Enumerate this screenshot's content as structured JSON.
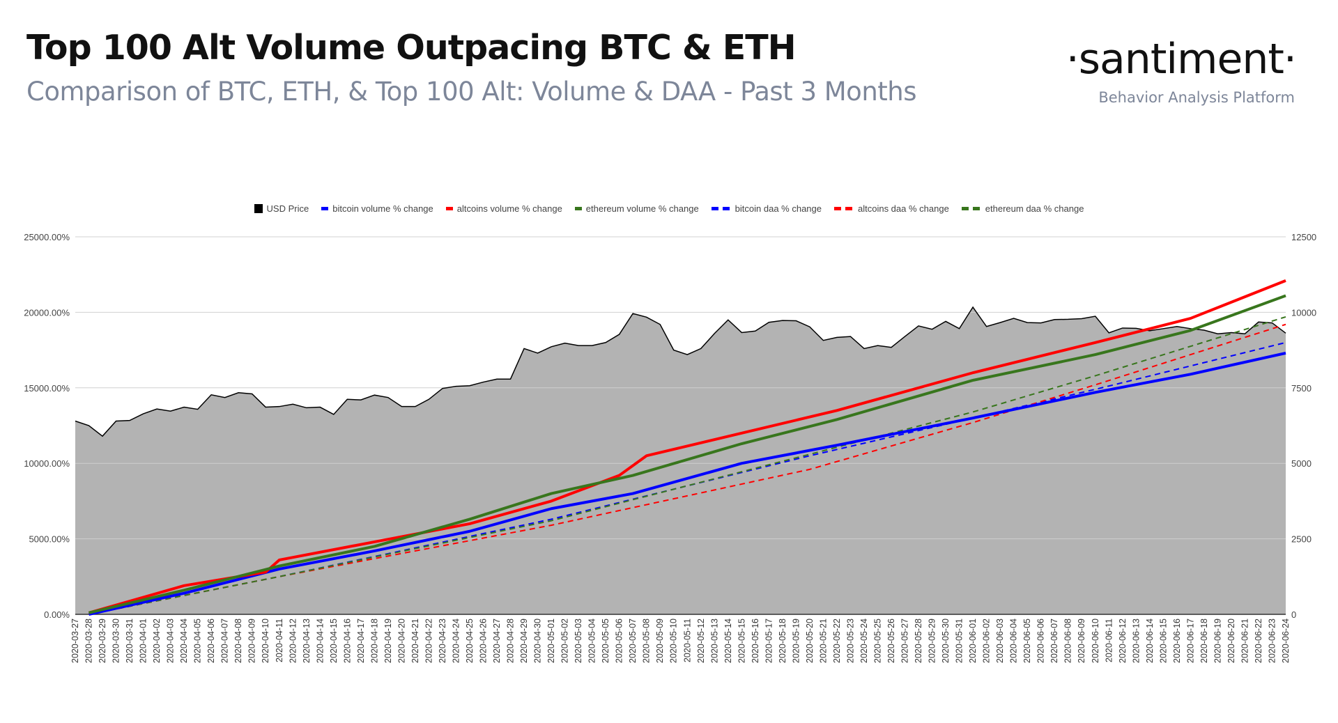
{
  "header": {
    "title": "Top 100 Alt Volume Outpacing BTC & ETH",
    "subtitle": "Comparison of BTC, ETH, & Top 100 Alt: Volume & DAA - Past 3 Months",
    "logo": "·santiment·",
    "tagline": "Behavior Analysis Platform"
  },
  "chart_data": {
    "type": "line",
    "legend_position": "top",
    "grid": true,
    "y_left": {
      "range": [
        0,
        25000
      ],
      "ticks": [
        "0.00%",
        "5000.00%",
        "10000.00%",
        "15000.00%",
        "20000.00%",
        "25000.00%"
      ],
      "tick_values": [
        0,
        5000,
        10000,
        15000,
        20000,
        25000
      ]
    },
    "y_right": {
      "range": [
        0,
        12500
      ],
      "ticks": [
        "0",
        "2500",
        "5000",
        "7500",
        "10000",
        "12500"
      ],
      "tick_values": [
        0,
        2500,
        5000,
        7500,
        10000,
        12500
      ]
    },
    "categories": [
      "2020-03-27",
      "2020-03-28",
      "2020-03-29",
      "2020-03-30",
      "2020-03-31",
      "2020-04-01",
      "2020-04-02",
      "2020-04-03",
      "2020-04-04",
      "2020-04-05",
      "2020-04-06",
      "2020-04-07",
      "2020-04-08",
      "2020-04-09",
      "2020-04-10",
      "2020-04-11",
      "2020-04-12",
      "2020-04-13",
      "2020-04-14",
      "2020-04-15",
      "2020-04-16",
      "2020-04-17",
      "2020-04-18",
      "2020-04-19",
      "2020-04-20",
      "2020-04-21",
      "2020-04-22",
      "2020-04-23",
      "2020-04-24",
      "2020-04-25",
      "2020-04-26",
      "2020-04-27",
      "2020-04-28",
      "2020-04-29",
      "2020-04-30",
      "2020-05-01",
      "2020-05-02",
      "2020-05-03",
      "2020-05-04",
      "2020-05-05",
      "2020-05-06",
      "2020-05-07",
      "2020-05-08",
      "2020-05-09",
      "2020-05-10",
      "2020-05-11",
      "2020-05-12",
      "2020-05-13",
      "2020-05-14",
      "2020-05-15",
      "2020-05-16",
      "2020-05-17",
      "2020-05-18",
      "2020-05-19",
      "2020-05-20",
      "2020-05-21",
      "2020-05-22",
      "2020-05-23",
      "2020-05-24",
      "2020-05-25",
      "2020-05-26",
      "2020-05-27",
      "2020-05-28",
      "2020-05-29",
      "2020-05-30",
      "2020-05-31",
      "2020-06-01",
      "2020-06-02",
      "2020-06-03",
      "2020-06-04",
      "2020-06-05",
      "2020-06-06",
      "2020-06-07",
      "2020-06-08",
      "2020-06-09",
      "2020-06-10",
      "2020-06-11",
      "2020-06-12",
      "2020-06-13",
      "2020-06-14",
      "2020-06-15",
      "2020-06-16",
      "2020-06-17",
      "2020-06-18",
      "2020-06-19",
      "2020-06-20",
      "2020-06-21",
      "2020-06-22",
      "2020-06-23",
      "2020-06-24"
    ],
    "price": {
      "name": "USD Price",
      "axis": "right",
      "color": "#000000",
      "fill": "#b3b3b3",
      "values": [
        6400,
        6250,
        5900,
        6400,
        6420,
        6640,
        6800,
        6730,
        6860,
        6790,
        7270,
        7180,
        7340,
        7300,
        6860,
        6880,
        6960,
        6840,
        6860,
        6620,
        7120,
        7100,
        7260,
        7180,
        6880,
        6880,
        7120,
        7480,
        7550,
        7570,
        7690,
        7790,
        7790,
        8800,
        8650,
        8860,
        8980,
        8900,
        8900,
        9000,
        9270,
        9960,
        9840,
        9600,
        8750,
        8600,
        8800,
        9300,
        9750,
        9330,
        9380,
        9670,
        9730,
        9720,
        9520,
        9070,
        9170,
        9200,
        8800,
        8900,
        8840,
        9200,
        9550,
        9440,
        9700,
        9460,
        10170,
        9530,
        9660,
        9800,
        9660,
        9650,
        9760,
        9770,
        9790,
        9870,
        9320,
        9480,
        9470,
        9390,
        9460,
        9530,
        9460,
        9410,
        9290,
        9330,
        9290,
        9680,
        9650,
        9310
      ]
    },
    "series": [
      {
        "name": "bitcoin volume % change",
        "color": "#0000ff",
        "dashed": false,
        "points": [
          [
            "2020-03-28",
            0
          ],
          [
            "2020-04-04",
            1400
          ],
          [
            "2020-04-11",
            3000
          ],
          [
            "2020-04-18",
            4200
          ],
          [
            "2020-04-25",
            5500
          ],
          [
            "2020-05-01",
            7000
          ],
          [
            "2020-05-07",
            8000
          ],
          [
            "2020-05-15",
            10000
          ],
          [
            "2020-05-22",
            11200
          ],
          [
            "2020-06-01",
            13000
          ],
          [
            "2020-06-10",
            14700
          ],
          [
            "2020-06-17",
            15900
          ],
          [
            "2020-06-24",
            17300
          ]
        ]
      },
      {
        "name": "altcoins volume % change",
        "color": "#ff0000",
        "dashed": false,
        "points": [
          [
            "2020-03-28",
            100
          ],
          [
            "2020-04-04",
            1900
          ],
          [
            "2020-04-10",
            2800
          ],
          [
            "2020-04-11",
            3600
          ],
          [
            "2020-04-18",
            4800
          ],
          [
            "2020-04-25",
            6000
          ],
          [
            "2020-05-01",
            7500
          ],
          [
            "2020-05-06",
            9200
          ],
          [
            "2020-05-08",
            10500
          ],
          [
            "2020-05-15",
            12000
          ],
          [
            "2020-05-22",
            13500
          ],
          [
            "2020-06-01",
            16000
          ],
          [
            "2020-06-10",
            18000
          ],
          [
            "2020-06-17",
            19600
          ],
          [
            "2020-06-24",
            22100
          ]
        ]
      },
      {
        "name": "ethereum volume % change",
        "color": "#38761d",
        "dashed": false,
        "points": [
          [
            "2020-03-28",
            100
          ],
          [
            "2020-04-04",
            1600
          ],
          [
            "2020-04-11",
            3200
          ],
          [
            "2020-04-18",
            4500
          ],
          [
            "2020-04-25",
            6300
          ],
          [
            "2020-05-01",
            8000
          ],
          [
            "2020-05-07",
            9200
          ],
          [
            "2020-05-15",
            11300
          ],
          [
            "2020-05-22",
            12900
          ],
          [
            "2020-06-01",
            15500
          ],
          [
            "2020-06-10",
            17200
          ],
          [
            "2020-06-17",
            18800
          ],
          [
            "2020-06-24",
            21100
          ]
        ]
      },
      {
        "name": "bitcoin daa % change",
        "color": "#0000ff",
        "dashed": true,
        "points": [
          [
            "2020-03-28",
            0
          ],
          [
            "2020-04-11",
            2500
          ],
          [
            "2020-05-01",
            6300
          ],
          [
            "2020-05-20",
            10500
          ],
          [
            "2020-06-01",
            13000
          ],
          [
            "2020-06-10",
            14900
          ],
          [
            "2020-06-24",
            18000
          ]
        ]
      },
      {
        "name": "altcoins daa % change",
        "color": "#ff0000",
        "dashed": true,
        "points": [
          [
            "2020-03-28",
            0
          ],
          [
            "2020-04-11",
            2500
          ],
          [
            "2020-05-01",
            5900
          ],
          [
            "2020-05-20",
            9600
          ],
          [
            "2020-06-01",
            12700
          ],
          [
            "2020-06-10",
            15200
          ],
          [
            "2020-06-24",
            19200
          ]
        ]
      },
      {
        "name": "ethereum daa % change",
        "color": "#38761d",
        "dashed": true,
        "points": [
          [
            "2020-03-28",
            0
          ],
          [
            "2020-04-11",
            2500
          ],
          [
            "2020-05-01",
            6200
          ],
          [
            "2020-05-20",
            10600
          ],
          [
            "2020-06-01",
            13400
          ],
          [
            "2020-06-10",
            15800
          ],
          [
            "2020-06-24",
            19700
          ]
        ]
      }
    ]
  }
}
